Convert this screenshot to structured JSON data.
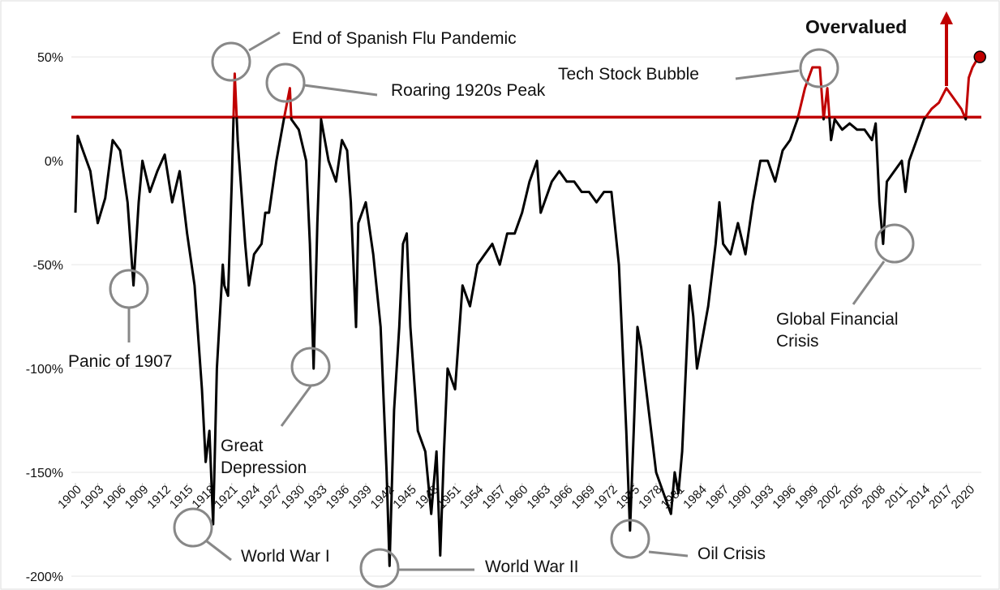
{
  "chart_data": {
    "type": "line",
    "x": [
      1900,
      1900.3,
      1901,
      1902,
      1903,
      1904,
      1905,
      1906,
      1907,
      1907.8,
      1908.5,
      1909,
      1910,
      1911,
      1912,
      1913,
      1914,
      1915,
      1916,
      1917,
      1917.5,
      1918,
      1918.5,
      1919,
      1919.8,
      1920,
      1920.5,
      1921,
      1921.4,
      1921.8,
      1922,
      1922.8,
      1923.3,
      1924,
      1925,
      1925.5,
      1926,
      1927,
      1928,
      1928.8,
      1929,
      1930,
      1931,
      1931.5,
      1932,
      1932.5,
      1933,
      1934,
      1935,
      1935.8,
      1936.5,
      1937,
      1937.7,
      1938,
      1939,
      1940,
      1941,
      1941.8,
      1942.2,
      1942.8,
      1943.5,
      1944,
      1944.5,
      1945,
      1946,
      1947,
      1947.8,
      1948.5,
      1949,
      1949.5,
      1950,
      1951,
      1952,
      1953,
      1954,
      1955,
      1956,
      1957,
      1958,
      1959,
      1960,
      1961,
      1962,
      1962.5,
      1963,
      1964,
      1965,
      1966,
      1967,
      1968,
      1969,
      1970,
      1971,
      1972,
      1973,
      1974,
      1974.5,
      1975,
      1975.5,
      1976,
      1977,
      1978,
      1979,
      1980,
      1980.5,
      1981,
      1981.5,
      1982,
      1982.5,
      1983,
      1983.5,
      1984,
      1985,
      1986,
      1986.5,
      1987,
      1988,
      1989,
      1990,
      1991,
      1992,
      1993,
      1994,
      1995,
      1996,
      1997,
      1998,
      1999,
      2000,
      2000.5,
      2001,
      2001.5,
      2002,
      2003,
      2004,
      2005,
      2006,
      2007,
      2007.5,
      2008,
      2008.5,
      2009,
      2010,
      2011,
      2011.5,
      2012,
      2013,
      2014,
      2015,
      2016,
      2017,
      2018,
      2019,
      2019.6,
      2020,
      2020.5,
      2021,
      2021.5
    ],
    "values": [
      -25,
      12,
      5,
      -5,
      -30,
      -18,
      10,
      5,
      -20,
      -60,
      -20,
      0,
      -15,
      -5,
      3,
      -20,
      -5,
      -35,
      -60,
      -110,
      -145,
      -130,
      -175,
      -100,
      -50,
      -60,
      -65,
      -10,
      42,
      10,
      0,
      -40,
      -60,
      -45,
      -40,
      -25,
      -25,
      0,
      20,
      35,
      20,
      15,
      0,
      -40,
      -100,
      -30,
      20,
      0,
      -10,
      10,
      5,
      -20,
      -80,
      -30,
      -20,
      -45,
      -80,
      -150,
      -195,
      -120,
      -80,
      -40,
      -35,
      -80,
      -130,
      -140,
      -170,
      -140,
      -190,
      -140,
      -100,
      -110,
      -60,
      -70,
      -50,
      -45,
      -40,
      -50,
      -35,
      -35,
      -25,
      -10,
      0,
      -25,
      -20,
      -10,
      -5,
      -10,
      -10,
      -15,
      -15,
      -20,
      -15,
      -15,
      -50,
      -130,
      -178,
      -130,
      -80,
      -90,
      -120,
      -150,
      -160,
      -170,
      -150,
      -160,
      -140,
      -100,
      -60,
      -75,
      -100,
      -90,
      -70,
      -40,
      -20,
      -40,
      -45,
      -30,
      -45,
      -20,
      0,
      0,
      -10,
      5,
      10,
      20,
      35,
      45,
      45,
      20,
      35,
      10,
      20,
      15,
      18,
      15,
      15,
      10,
      18,
      -20,
      -40,
      -10,
      -5,
      0,
      -15,
      0,
      10,
      20,
      25,
      28,
      35,
      30,
      25,
      20,
      40,
      45,
      48,
      50
    ],
    "color": "#000000",
    "over_color": "#c00000",
    "threshold": 21,
    "xlim": [
      1900,
      2023
    ],
    "ylim": [
      -200,
      70
    ],
    "xticks": [
      1900,
      1903,
      1906,
      1909,
      1912,
      1915,
      1918,
      1921,
      1924,
      1927,
      1930,
      1933,
      1936,
      1939,
      1942,
      1945,
      1948,
      1951,
      1954,
      1957,
      1960,
      1963,
      1966,
      1969,
      1972,
      1975,
      1978,
      1981,
      1984,
      1987,
      1990,
      1993,
      1996,
      1999,
      2002,
      2005,
      2008,
      2011,
      2014,
      2017,
      2020
    ],
    "yticks": [
      {
        "value": 50,
        "label": "50%"
      },
      {
        "value": 0,
        "label": "0%"
      },
      {
        "value": -50,
        "label": "-50%"
      },
      {
        "value": -100,
        "label": "-100%"
      },
      {
        "value": -150,
        "label": "-150%"
      },
      {
        "value": -200,
        "label": "-200%"
      }
    ],
    "grid": true,
    "annotations": [
      "End of Spanish Flu Pandemic",
      "Roaring 1920s Peak",
      "Tech Stock Bubble",
      "Panic of 1907",
      "Great Depression",
      "World War I",
      "World War II",
      "Oil Crisis",
      "Global Financial Crisis",
      "Overvalued"
    ]
  }
}
